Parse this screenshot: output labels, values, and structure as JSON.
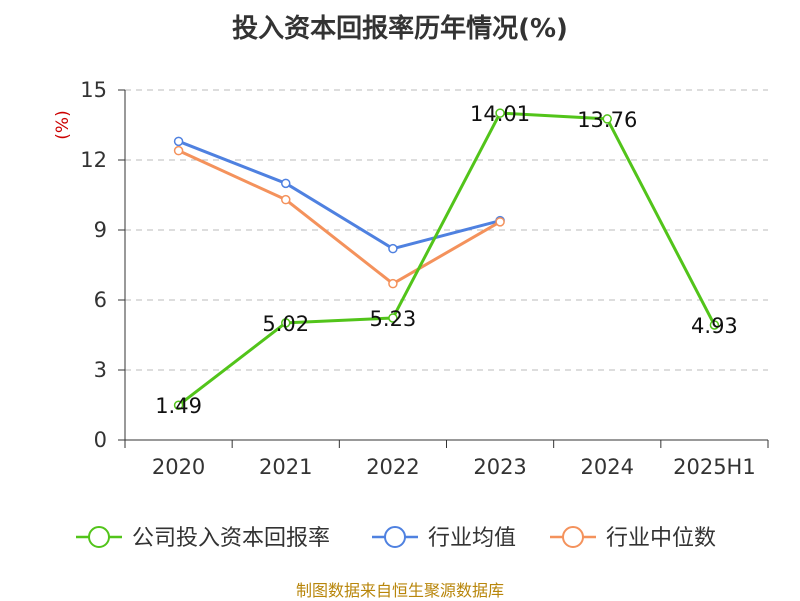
{
  "chart_data": {
    "type": "line",
    "title": "投入资本回报率历年情况(%)",
    "ylabel_unit": "(%)",
    "categories": [
      "2020",
      "2021",
      "2022",
      "2023",
      "2024",
      "2025H1"
    ],
    "ylim": [
      0,
      15
    ],
    "yticks": [
      "0",
      "3",
      "6",
      "9",
      "12",
      "15"
    ],
    "grid": true,
    "legend_position": "bottom",
    "series": [
      {
        "name": "公司投入资本回报率",
        "color": "#52c41a",
        "values": [
          1.49,
          5.02,
          5.23,
          14.01,
          13.76,
          4.93
        ],
        "labels": [
          "1.49",
          "5.02",
          "5.23",
          "14.01",
          "13.76",
          "4.93"
        ]
      },
      {
        "name": "行业均值",
        "color": "#4f81e0",
        "values": [
          12.8,
          11.0,
          8.2,
          9.4,
          null,
          null
        ]
      },
      {
        "name": "行业中位数",
        "color": "#f4925c",
        "values": [
          12.4,
          10.3,
          6.7,
          9.35,
          null,
          null
        ]
      }
    ]
  },
  "footer": {
    "source": "制图数据来自恒生聚源数据库"
  }
}
